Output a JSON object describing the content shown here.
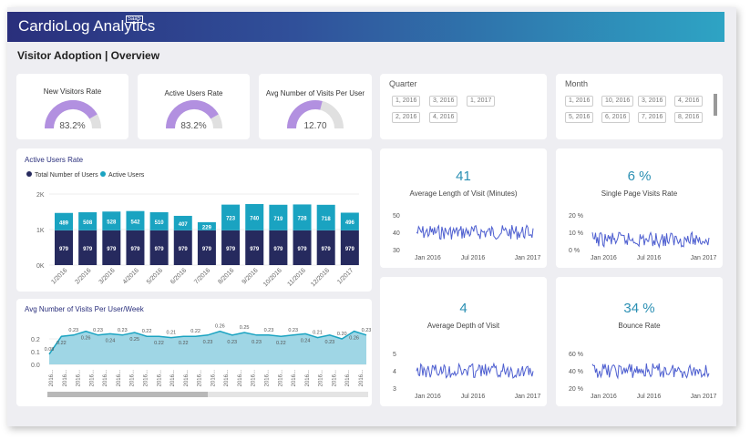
{
  "header": {
    "brand": "CardioLog Analytics",
    "sub": "SaaS"
  },
  "page_title": "Visitor Adoption | Overview",
  "kpis": [
    {
      "title": "New Visitors Rate",
      "value": "83.2%",
      "fraction": 0.832
    },
    {
      "title": "Active Users Rate",
      "value": "83.2%",
      "fraction": 0.832
    },
    {
      "title": "Avg Number of Visits Per User",
      "value": "12.70",
      "fraction": 0.58
    }
  ],
  "quarter": {
    "title": "Quarter",
    "items": [
      "1, 2016",
      "3, 2016",
      "1, 2017",
      "2, 2016",
      "4, 2016"
    ]
  },
  "month": {
    "title": "Month",
    "items": [
      "1, 2016",
      "10, 2016",
      "3, 2016",
      "4, 2016",
      "5, 2016",
      "6, 2016",
      "7, 2016",
      "8, 2016"
    ]
  },
  "metrics": [
    {
      "value": "41",
      "label": "Average Length of Visit (Minutes)",
      "yticks": [
        "50",
        "40",
        "30"
      ],
      "xticks": [
        "Jan 2016",
        "Jul 2016",
        "Jan 2017"
      ]
    },
    {
      "value": "6 %",
      "label": "Single Page Visits Rate",
      "yticks": [
        "20 %",
        "10 %",
        "0 %"
      ],
      "xticks": [
        "Jan 2016",
        "Jul 2016",
        "Jan 2017"
      ]
    },
    {
      "value": "4",
      "label": "Average Depth of Visit",
      "yticks": [
        "5",
        "4",
        "3"
      ],
      "xticks": [
        "Jan 2016",
        "Jul 2016",
        "Jan 2017"
      ]
    },
    {
      "value": "34 %",
      "label": "Bounce Rate",
      "yticks": [
        "60 %",
        "40 %",
        "20 %"
      ],
      "xticks": [
        "Jan 2016",
        "Jul 2016",
        "Jan 2017"
      ]
    }
  ],
  "colors": {
    "dark": "#262a5e",
    "teal": "#1aa3c1",
    "gauge": "#b290e0",
    "line": "#4e5fd0"
  },
  "chart_data": [
    {
      "type": "bar",
      "title": "Active Users Rate",
      "legend": [
        "Total Number of Users",
        "Active Users"
      ],
      "categories": [
        "1/2016",
        "2/2016",
        "3/2016",
        "4/2016",
        "5/2016",
        "6/2016",
        "7/2016",
        "8/2016",
        "9/2016",
        "10/2016",
        "11/2016",
        "12/2016",
        "1/2017"
      ],
      "series": [
        {
          "name": "Total Number of Users",
          "values": [
            979,
            979,
            979,
            979,
            979,
            979,
            979,
            979,
            979,
            979,
            979,
            979,
            979
          ]
        },
        {
          "name": "Active Users",
          "values": [
            489,
            508,
            528,
            542,
            510,
            407,
            229,
            723,
            740,
            719,
            728,
            718,
            496
          ]
        }
      ],
      "yticks": [
        "2K",
        "1K",
        "0K"
      ],
      "ylim": [
        0,
        2000
      ]
    },
    {
      "type": "area",
      "title": "Avg Number of Visits Per User/Week",
      "yticks": [
        "0.2",
        "0.1",
        "0.0"
      ],
      "values": [
        0.08,
        0.22,
        0.23,
        0.26,
        0.23,
        0.24,
        0.23,
        0.25,
        0.22,
        0.22,
        0.21,
        0.22,
        0.22,
        0.23,
        0.26,
        0.23,
        0.25,
        0.23,
        0.23,
        0.22,
        0.23,
        0.24,
        0.21,
        0.23,
        0.2,
        0.26,
        0.23
      ],
      "labels": [
        "0.08",
        "0.22",
        "0.23",
        "0.26",
        "0.23",
        "0.24",
        "0.23",
        "0.25",
        "0.22",
        "0.22",
        "0.21",
        "0.22",
        "0.22",
        "0.23",
        "0.26",
        "0.23",
        "0.25",
        "0.23",
        "0.23",
        "0.22",
        "0.23",
        "0.24",
        "0.21",
        "0.23",
        "0.20",
        "0.26",
        "0.23"
      ],
      "xtick": "2016...",
      "ylim": [
        0,
        0.3
      ]
    }
  ]
}
